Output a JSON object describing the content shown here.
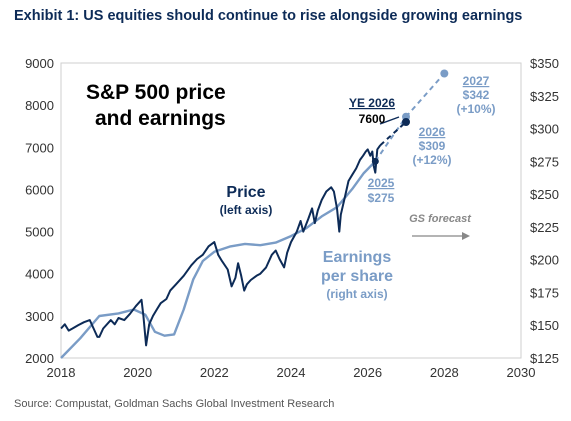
{
  "exhibit_title": "Exhibit 1: US equities should continue to rise alongside growing earnings",
  "source": "Source: Compustat, Goldman Sachs Global Investment Research",
  "colors": {
    "price": "#0d2b57",
    "eps": "#7a9cc6",
    "forecast_arrow": "#888888",
    "axis_text": "#333333",
    "frame": "#cfcfcf"
  },
  "chart_data": {
    "type": "line",
    "title": "S&P 500 price and earnings",
    "title_lines": [
      "S&P 500 price",
      "and earnings"
    ],
    "x_ticks": [
      "2018",
      "2020",
      "2022",
      "2024",
      "2026",
      "2028",
      "2030"
    ],
    "xlim": [
      2018,
      2030
    ],
    "y_left_ticks": [
      "9000",
      "8000",
      "7000",
      "6000",
      "5000",
      "4000",
      "3000",
      "2000"
    ],
    "y_left_lim": [
      2000,
      9000
    ],
    "y_right_ticks": [
      "$350",
      "$325",
      "$300",
      "$275",
      "$250",
      "$225",
      "$200",
      "$175",
      "$150",
      "$125"
    ],
    "y_right_lim": [
      125,
      350
    ],
    "grid": false,
    "series": [
      {
        "name": "Price",
        "axis": "left",
        "note": "(left axis)",
        "points": [
          [
            2018.0,
            2700
          ],
          [
            2018.1,
            2800
          ],
          [
            2018.2,
            2650
          ],
          [
            2018.3,
            2700
          ],
          [
            2018.45,
            2780
          ],
          [
            2018.6,
            2850
          ],
          [
            2018.75,
            2900
          ],
          [
            2018.85,
            2700
          ],
          [
            2018.95,
            2500
          ],
          [
            2019.0,
            2500
          ],
          [
            2019.1,
            2700
          ],
          [
            2019.3,
            2900
          ],
          [
            2019.4,
            2800
          ],
          [
            2019.5,
            2950
          ],
          [
            2019.65,
            2900
          ],
          [
            2019.8,
            3050
          ],
          [
            2019.95,
            3230
          ],
          [
            2020.1,
            3380
          ],
          [
            2020.15,
            3000
          ],
          [
            2020.22,
            2300
          ],
          [
            2020.3,
            2800
          ],
          [
            2020.4,
            3000
          ],
          [
            2020.5,
            3150
          ],
          [
            2020.6,
            3300
          ],
          [
            2020.75,
            3400
          ],
          [
            2020.85,
            3600
          ],
          [
            2021.0,
            3750
          ],
          [
            2021.2,
            3950
          ],
          [
            2021.4,
            4200
          ],
          [
            2021.55,
            4350
          ],
          [
            2021.7,
            4450
          ],
          [
            2021.85,
            4650
          ],
          [
            2022.0,
            4750
          ],
          [
            2022.1,
            4450
          ],
          [
            2022.2,
            4300
          ],
          [
            2022.35,
            4100
          ],
          [
            2022.45,
            3700
          ],
          [
            2022.55,
            3900
          ],
          [
            2022.62,
            4250
          ],
          [
            2022.7,
            3950
          ],
          [
            2022.78,
            3600
          ],
          [
            2022.85,
            3750
          ],
          [
            2022.95,
            3850
          ],
          [
            2023.1,
            3950
          ],
          [
            2023.2,
            4000
          ],
          [
            2023.35,
            4150
          ],
          [
            2023.5,
            4450
          ],
          [
            2023.6,
            4550
          ],
          [
            2023.7,
            4350
          ],
          [
            2023.82,
            4150
          ],
          [
            2023.9,
            4500
          ],
          [
            2024.0,
            4750
          ],
          [
            2024.15,
            5000
          ],
          [
            2024.25,
            5250
          ],
          [
            2024.32,
            5000
          ],
          [
            2024.45,
            5300
          ],
          [
            2024.55,
            5550
          ],
          [
            2024.62,
            5200
          ],
          [
            2024.7,
            5500
          ],
          [
            2024.8,
            5750
          ],
          [
            2024.92,
            5950
          ],
          [
            2025.05,
            6050
          ],
          [
            2025.12,
            5950
          ],
          [
            2025.2,
            5550
          ],
          [
            2025.26,
            5000
          ],
          [
            2025.3,
            5400
          ],
          [
            2025.4,
            5800
          ],
          [
            2025.5,
            6200
          ],
          [
            2025.6,
            6350
          ],
          [
            2025.7,
            6500
          ],
          [
            2025.8,
            6700
          ],
          [
            2025.88,
            6800
          ],
          [
            2025.95,
            6900
          ],
          [
            2026.0,
            6950
          ],
          [
            2026.07,
            6800
          ],
          [
            2026.12,
            6900
          ],
          [
            2026.16,
            6550
          ],
          [
            2026.2,
            6400
          ],
          [
            2026.25,
            6950
          ],
          [
            2026.33,
            7050
          ]
        ]
      },
      {
        "name": "Earnings per share",
        "axis": "right",
        "note": "(right axis)",
        "points": [
          [
            2018.0,
            125
          ],
          [
            2018.5,
            140
          ],
          [
            2019.0,
            157
          ],
          [
            2019.5,
            159
          ],
          [
            2019.9,
            162
          ],
          [
            2020.2,
            158
          ],
          [
            2020.45,
            145
          ],
          [
            2020.7,
            142
          ],
          [
            2020.95,
            143
          ],
          [
            2021.2,
            162
          ],
          [
            2021.45,
            185
          ],
          [
            2021.7,
            199
          ],
          [
            2022.0,
            206
          ],
          [
            2022.4,
            210
          ],
          [
            2022.8,
            212
          ],
          [
            2023.2,
            211
          ],
          [
            2023.6,
            213
          ],
          [
            2024.0,
            218
          ],
          [
            2024.4,
            224
          ],
          [
            2024.8,
            233
          ],
          [
            2025.2,
            240
          ],
          [
            2025.6,
            254
          ],
          [
            2025.9,
            266
          ],
          [
            2026.2,
            275
          ]
        ]
      },
      {
        "name": "Price forecast",
        "axis": "left",
        "points": [
          [
            2026.33,
            7050
          ],
          [
            2027.0,
            7600
          ]
        ]
      },
      {
        "name": "EPS forecast",
        "axis": "right",
        "points": [
          [
            2026.2,
            275
          ],
          [
            2027.0,
            309
          ],
          [
            2028.0,
            342
          ]
        ]
      }
    ],
    "annotations": {
      "ye2026": {
        "label": "YE 2026",
        "value": "7600",
        "x": 2027.0,
        "y": 7600
      },
      "eps2025": {
        "year": "2025",
        "value": "$275",
        "x": 2026.2,
        "y": 275
      },
      "eps2026": {
        "year": "2026",
        "value": "$309",
        "growth": "(+12%)",
        "x": 2027.0,
        "y": 309
      },
      "eps2027": {
        "year": "2027",
        "value": "$342",
        "growth": "(+10%)",
        "x": 2028.0,
        "y": 342
      },
      "price_label": "Price",
      "price_note": "(left axis)",
      "eps_label_lines": [
        "Earnings",
        "per share"
      ],
      "eps_note": "(right axis)",
      "forecast_label": "GS forecast"
    }
  }
}
